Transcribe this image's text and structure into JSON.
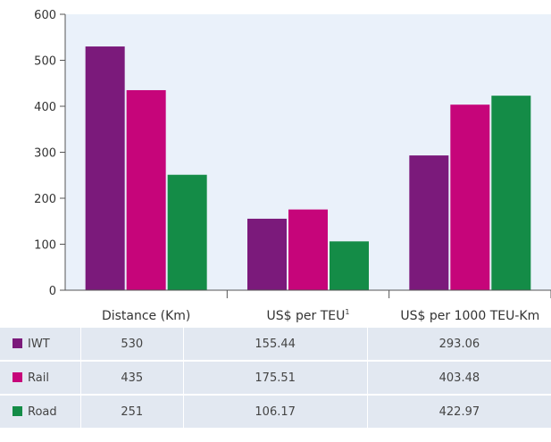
{
  "chart_data": {
    "type": "bar",
    "categories": [
      "Distance (Km)",
      "US$ per TEU",
      "US$ per 1000 TEU-Km"
    ],
    "category_superscripts": [
      "",
      "1",
      ""
    ],
    "series": [
      {
        "name": "IWT",
        "color": "#7b1a7b",
        "values": [
          530,
          155.44,
          293.06
        ],
        "labels": [
          "530",
          "155.44",
          "293.06"
        ]
      },
      {
        "name": "Rail",
        "color": "#c6057a",
        "values": [
          435,
          175.51,
          403.48
        ],
        "labels": [
          "435",
          "175.51",
          "403.48"
        ]
      },
      {
        "name": "Road",
        "color": "#148c47",
        "values": [
          251,
          106.17,
          422.97
        ],
        "labels": [
          "251",
          "106.17",
          "422.97"
        ]
      }
    ],
    "yticks": [
      0,
      100,
      200,
      300,
      400,
      500,
      600
    ],
    "ylim": [
      0,
      600
    ],
    "plot_background": "#eaf1fa",
    "grid": false,
    "legend": "data-table-below"
  }
}
